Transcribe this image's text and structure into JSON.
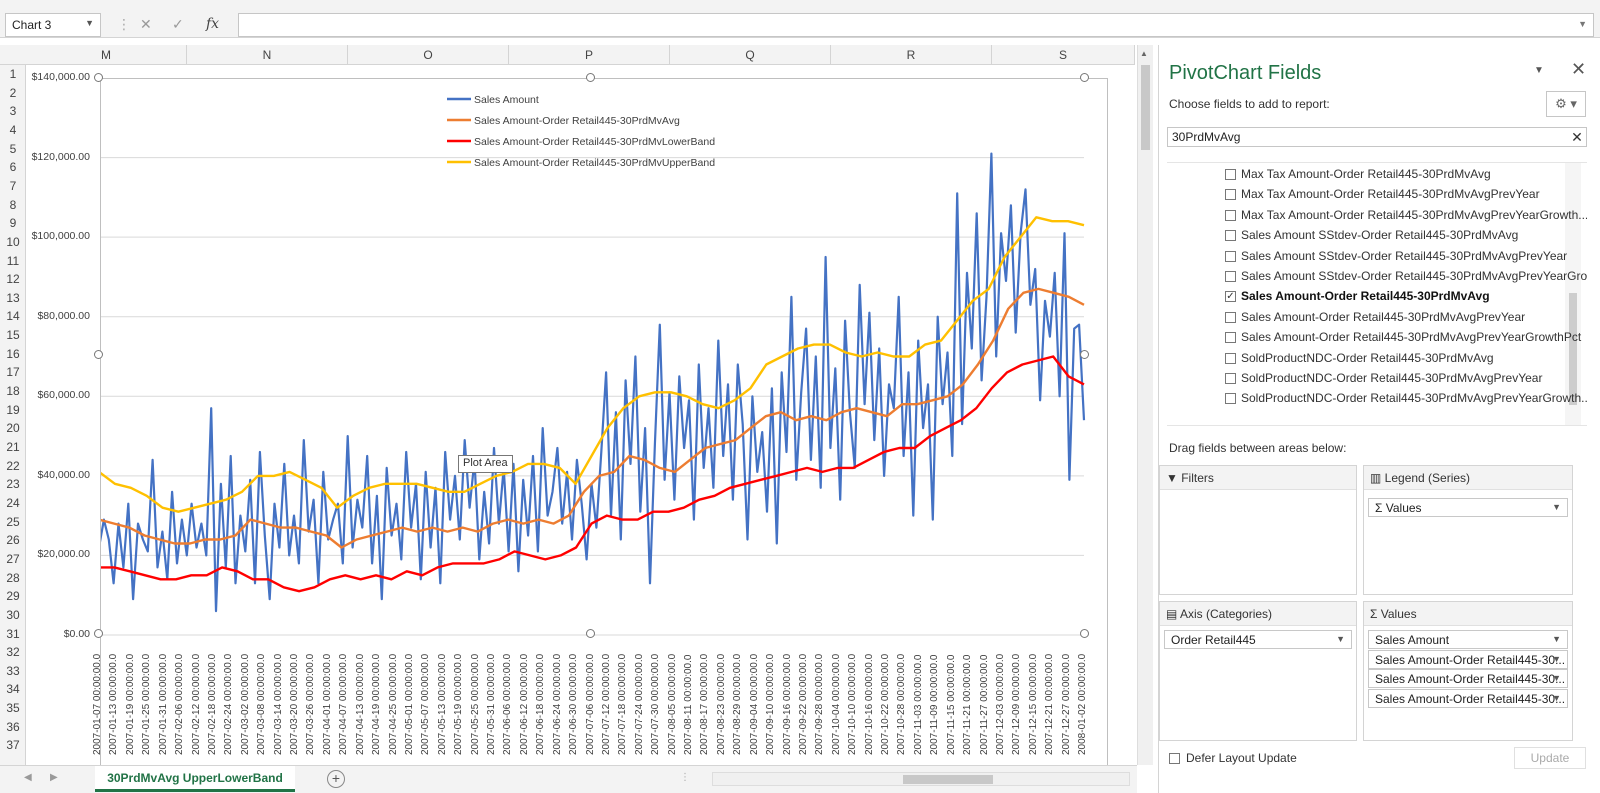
{
  "formula_bar": {
    "name_box": "Chart 3",
    "formula": ""
  },
  "columns": [
    "M",
    "N",
    "O",
    "P",
    "Q",
    "R",
    "S"
  ],
  "rows": [
    "1",
    "2",
    "3",
    "4",
    "5",
    "6",
    "7",
    "8",
    "9",
    "10",
    "11",
    "12",
    "13",
    "14",
    "15",
    "16",
    "17",
    "18",
    "19",
    "20",
    "21",
    "22",
    "23",
    "24",
    "25",
    "26",
    "27",
    "28",
    "29",
    "30",
    "31",
    "32",
    "33",
    "34",
    "35",
    "36",
    "37"
  ],
  "sheet_tab": "30PrdMvAvg UpperLowerBand",
  "plot_area_tooltip": "Plot Area",
  "pivot": {
    "title": "PivotChart Fields",
    "choose_label": "Choose fields to add to report:",
    "search_value": "30PrdMvAvg",
    "fields": [
      {
        "label": "Max Tax Amount-Order Retail445-30PrdMvAvg",
        "checked": false
      },
      {
        "label": "Max Tax Amount-Order Retail445-30PrdMvAvgPrevYear",
        "checked": false
      },
      {
        "label": "Max Tax Amount-Order Retail445-30PrdMvAvgPrevYearGrowth...",
        "checked": false
      },
      {
        "label": "Sales Amount SStdev-Order Retail445-30PrdMvAvg",
        "checked": false
      },
      {
        "label": "Sales Amount SStdev-Order Retail445-30PrdMvAvgPrevYear",
        "checked": false
      },
      {
        "label": "Sales Amount SStdev-Order Retail445-30PrdMvAvgPrevYearGro...",
        "checked": false
      },
      {
        "label": "Sales Amount-Order Retail445-30PrdMvAvg",
        "checked": true
      },
      {
        "label": "Sales Amount-Order Retail445-30PrdMvAvgPrevYear",
        "checked": false
      },
      {
        "label": "Sales Amount-Order Retail445-30PrdMvAvgPrevYearGrowthPct",
        "checked": false
      },
      {
        "label": "SoldProductNDC-Order Retail445-30PrdMvAvg",
        "checked": false
      },
      {
        "label": "SoldProductNDC-Order Retail445-30PrdMvAvgPrevYear",
        "checked": false
      },
      {
        "label": "SoldProductNDC-Order Retail445-30PrdMvAvgPrevYearGrowth...",
        "checked": false
      }
    ],
    "drag_label": "Drag fields between areas below:",
    "filters_label": "Filters",
    "legend_label": "Legend (Series)",
    "legend_items": [
      "Values"
    ],
    "axis_label": "Axis (Categories)",
    "axis_items": [
      "Order Retail445"
    ],
    "values_label": "Values",
    "values_items": [
      "Sales Amount",
      "Sales Amount-Order Retail445-30...",
      "Sales Amount-Order Retail445-30...",
      "Sales Amount-Order Retail445-30..."
    ],
    "defer_label": "Defer Layout Update",
    "update_label": "Update"
  },
  "chart_data": {
    "type": "line",
    "ylim": [
      0,
      140000
    ],
    "y_ticks": [
      "$0.00",
      "$20,000.00",
      "$40,000.00",
      "$60,000.00",
      "$80,000.00",
      "$100,000.00",
      "$120,000.00",
      "$140,000.00"
    ],
    "y_tick_values": [
      0,
      20000,
      40000,
      60000,
      80000,
      100000,
      120000,
      140000
    ],
    "x_labels": [
      "2007-01-07 00:00:00.0",
      "2007-01-13 00:00:00.0",
      "2007-01-19 00:00:00.0",
      "2007-01-25 00:00:00.0",
      "2007-01-31 00:00:00.0",
      "2007-02-06 00:00:00.0",
      "2007-02-12 00:00:00.0",
      "2007-02-18 00:00:00.0",
      "2007-02-24 00:00:00.0",
      "2007-03-02 00:00:00.0",
      "2007-03-08 00:00:00.0",
      "2007-03-14 00:00:00.0",
      "2007-03-20 00:00:00.0",
      "2007-03-26 00:00:00.0",
      "2007-04-01 00:00:00.0",
      "2007-04-07 00:00:00.0",
      "2007-04-13 00:00:00.0",
      "2007-04-19 00:00:00.0",
      "2007-04-25 00:00:00.0",
      "2007-05-01 00:00:00.0",
      "2007-05-07 00:00:00.0",
      "2007-05-13 00:00:00.0",
      "2007-05-19 00:00:00.0",
      "2007-05-25 00:00:00.0",
      "2007-05-31 00:00:00.0",
      "2007-06-06 00:00:00.0",
      "2007-06-12 00:00:00.0",
      "2007-06-18 00:00:00.0",
      "2007-06-24 00:00:00.0",
      "2007-06-30 00:00:00.0",
      "2007-07-06 00:00:00.0",
      "2007-07-12 00:00:00.0",
      "2007-07-18 00:00:00.0",
      "2007-07-24 00:00:00.0",
      "2007-07-30 00:00:00.0",
      "2007-08-05 00:00:00.0",
      "2007-08-11 00:00:00.0",
      "2007-08-17 00:00:00.0",
      "2007-08-23 00:00:00.0",
      "2007-08-29 00:00:00.0",
      "2007-09-04 00:00:00.0",
      "2007-09-10 00:00:00.0",
      "2007-09-16 00:00:00.0",
      "2007-09-22 00:00:00.0",
      "2007-09-28 00:00:00.0",
      "2007-10-04 00:00:00.0",
      "2007-10-10 00:00:00.0",
      "2007-10-16 00:00:00.0",
      "2007-10-22 00:00:00.0",
      "2007-10-28 00:00:00.0",
      "2007-11-03 00:00:00.0",
      "2007-11-09 00:00:00.0",
      "2007-11-15 00:00:00.0",
      "2007-11-21 00:00:00.0",
      "2007-11-27 00:00:00.0",
      "2007-12-03 00:00:00.0",
      "2007-12-09 00:00:00.0",
      "2007-12-15 00:00:00.0",
      "2007-12-21 00:00:00.0",
      "2007-12-27 00:00:00.0",
      "2008-01-02 00:00:00.0"
    ],
    "series": [
      {
        "name": "Sales Amount",
        "color": "#4472c4",
        "values": [
          22000,
          29000,
          24000,
          13000,
          28000,
          17000,
          33000,
          9000,
          28000,
          24000,
          21000,
          44000,
          17000,
          26000,
          14000,
          36000,
          18000,
          29000,
          20000,
          33000,
          22000,
          28000,
          20000,
          57000,
          6000,
          38000,
          17000,
          45000,
          13000,
          30000,
          21000,
          39000,
          13000,
          46000,
          25000,
          9000,
          33000,
          22000,
          43000,
          20000,
          30000,
          18000,
          49000,
          26000,
          34000,
          13000,
          41000,
          24000,
          29000,
          33000,
          18000,
          50000,
          22000,
          34000,
          27000,
          45000,
          18000,
          35000,
          9000,
          42000,
          25000,
          33000,
          19000,
          46000,
          27000,
          38000,
          14000,
          41000,
          22000,
          37000,
          13000,
          46000,
          29000,
          40000,
          24000,
          49000,
          32000,
          44000,
          19000,
          36000,
          23000,
          47000,
          28000,
          42000,
          21000,
          43000,
          16000,
          39000,
          25000,
          45000,
          21000,
          52000,
          30000,
          36000,
          47000,
          28000,
          41000,
          24000,
          44000,
          33000,
          19000,
          38000,
          27000,
          46000,
          66000,
          30000,
          56000,
          24000,
          64000,
          43000,
          70000,
          31000,
          52000,
          13000,
          48000,
          78000,
          39000,
          61000,
          34000,
          65000,
          47000,
          59000,
          29000,
          68000,
          42000,
          57000,
          37000,
          74000,
          45000,
          63000,
          34000,
          68000,
          53000,
          24000,
          60000,
          41000,
          51000,
          31000,
          62000,
          23000,
          66000,
          46000,
          85000,
          39000,
          61000,
          77000,
          44000,
          70000,
          37000,
          95000,
          47000,
          67000,
          34000,
          79000,
          56000,
          42000,
          88000,
          58000,
          81000,
          49000,
          72000,
          40000,
          63000,
          57000,
          85000,
          45000,
          66000,
          30000,
          74000,
          52000,
          63000,
          29000,
          80000,
          58000,
          71000,
          45000,
          111000,
          53000,
          91000,
          72000,
          106000,
          64000,
          85000,
          121000,
          70000,
          101000,
          89000,
          108000,
          76000,
          101000,
          112000,
          83000,
          92000,
          59000,
          84000,
          75000,
          91000,
          60000,
          101000,
          39000,
          77000,
          78000,
          54000
        ]
      },
      {
        "name": "Sales Amount-Order Retail445-30PrdMvAvg",
        "color": "#ed7d31",
        "values": [
          29000,
          28000,
          27000,
          25000,
          24000,
          23000,
          23000,
          24000,
          24000,
          25000,
          29000,
          28000,
          27000,
          27000,
          26000,
          25000,
          22000,
          24000,
          25000,
          26000,
          27000,
          26000,
          27000,
          26000,
          27000,
          26000,
          28000,
          29000,
          28000,
          29000,
          28000,
          30000,
          36000,
          40000,
          41000,
          45000,
          44000,
          42000,
          41000,
          44000,
          47000,
          48000,
          49000,
          52000,
          55000,
          56000,
          54000,
          55000,
          54000,
          56000,
          57000,
          56000,
          55000,
          58000,
          58000,
          59000,
          60000,
          63000,
          68000,
          74000,
          82000,
          86000,
          87000,
          86000,
          85000,
          83000
        ]
      },
      {
        "name": "Sales Amount-Order Retail445-30PrdMvLowerBand",
        "color": "#ff0000",
        "values": [
          17000,
          17000,
          16000,
          15000,
          14000,
          14000,
          15000,
          15000,
          17000,
          16000,
          14000,
          14000,
          12000,
          11000,
          12000,
          14000,
          15000,
          14000,
          15000,
          14000,
          16000,
          15000,
          17000,
          18000,
          18000,
          18000,
          19000,
          21000,
          20000,
          19000,
          20000,
          22000,
          28000,
          30000,
          29000,
          29000,
          31000,
          31000,
          32000,
          34000,
          35000,
          37000,
          38000,
          39000,
          40000,
          41000,
          42000,
          41000,
          42000,
          42000,
          44000,
          46000,
          47000,
          47000,
          50000,
          52000,
          54000,
          57000,
          62000,
          66000,
          68000,
          69000,
          70000,
          65000,
          63000
        ]
      },
      {
        "name": "Sales Amount-Order Retail445-30PrdMvUpperBand",
        "color": "#ffc000",
        "values": [
          41000,
          38000,
          37000,
          35000,
          32000,
          31000,
          32000,
          33000,
          34000,
          36000,
          40000,
          40000,
          41000,
          39000,
          37000,
          32000,
          35000,
          37000,
          38000,
          38000,
          38000,
          37000,
          36000,
          36000,
          38000,
          40000,
          41000,
          43000,
          43000,
          42000,
          38000,
          45000,
          52000,
          57000,
          60000,
          61000,
          61000,
          60000,
          58000,
          57000,
          59000,
          62000,
          68000,
          70000,
          72000,
          73000,
          73000,
          71000,
          70000,
          71000,
          70000,
          70000,
          73000,
          74000,
          79000,
          84000,
          87000,
          95000,
          100000,
          105000,
          104000,
          104000,
          103000
        ]
      }
    ]
  }
}
